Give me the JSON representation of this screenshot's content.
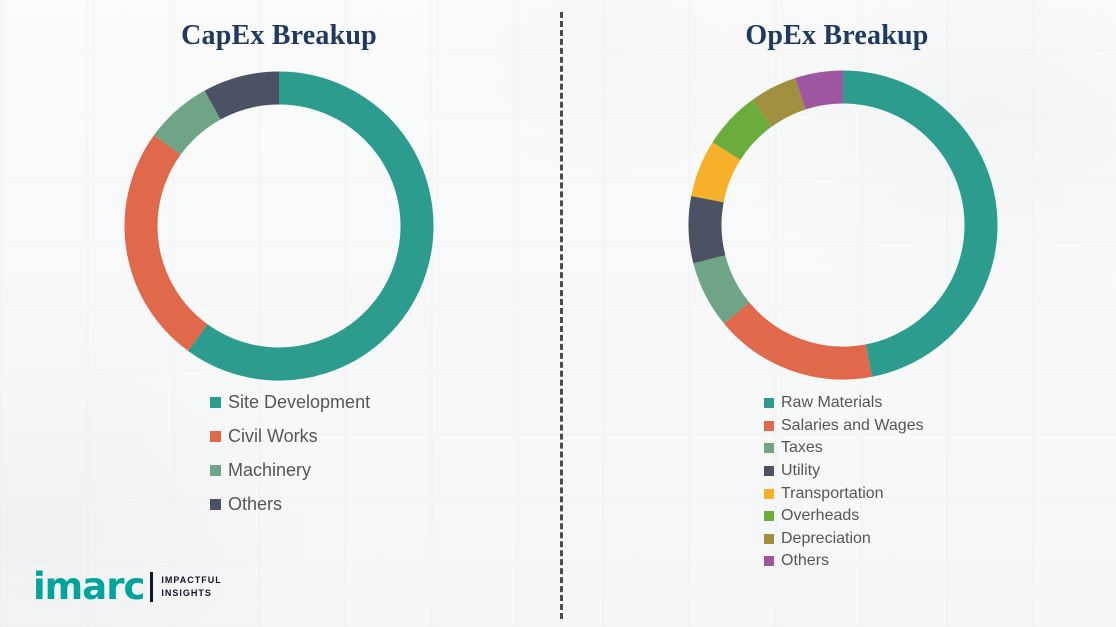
{
  "chart_data": [
    {
      "type": "pie",
      "donut": true,
      "title": "CapEx Breakup",
      "legend_position": "bottom",
      "units": "percent",
      "segments": [
        {
          "label": "Site Development",
          "value": 60,
          "color": "#2B9C8E"
        },
        {
          "label": "Civil Works",
          "value": 25,
          "color": "#E0694B"
        },
        {
          "label": "Machinery",
          "value": 7,
          "color": "#6FA487"
        },
        {
          "label": "Others",
          "value": 8,
          "color": "#4A5263"
        }
      ]
    },
    {
      "type": "pie",
      "donut": true,
      "title": "OpEx Breakup",
      "legend_position": "bottom",
      "units": "percent",
      "segments": [
        {
          "label": "Raw Materials",
          "value": 47,
          "color": "#2B9C8E"
        },
        {
          "label": "Salaries and Wages",
          "value": 17,
          "color": "#E0694B"
        },
        {
          "label": "Taxes",
          "value": 7,
          "color": "#6FA487"
        },
        {
          "label": "Utility",
          "value": 7,
          "color": "#4A5263"
        },
        {
          "label": "Transportation",
          "value": 6,
          "color": "#F6B029"
        },
        {
          "label": "Overheads",
          "value": 6,
          "color": "#6BAC3C"
        },
        {
          "label": "Depreciation",
          "value": 5,
          "color": "#A18F40"
        },
        {
          "label": "Others",
          "value": 5,
          "color": "#9F56A0"
        }
      ]
    }
  ],
  "logo": {
    "brand": "imarc",
    "tagline_line1": "IMPACTFUL",
    "tagline_line2": "INSIGHTS"
  }
}
